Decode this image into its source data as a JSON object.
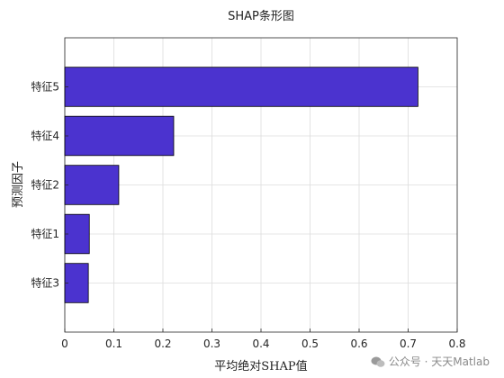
{
  "chart_data": {
    "type": "bar",
    "orientation": "horizontal",
    "title": "SHAP条形图",
    "xlabel": "平均绝对SHAP值",
    "ylabel": "预测因子",
    "categories": [
      "特征5",
      "特征4",
      "特征2",
      "特征1",
      "特征3"
    ],
    "values": [
      0.72,
      0.222,
      0.11,
      0.05,
      0.048
    ],
    "xlim": [
      0,
      0.8
    ],
    "xticks": [
      "0",
      "0.1",
      "0.2",
      "0.3",
      "0.4",
      "0.5",
      "0.6",
      "0.7",
      "0.8"
    ],
    "grid": true,
    "bar_color": "#4b33cf",
    "bar_edge_color": "#000000"
  },
  "watermark": {
    "text": "公众号 · 天天Matlab"
  }
}
